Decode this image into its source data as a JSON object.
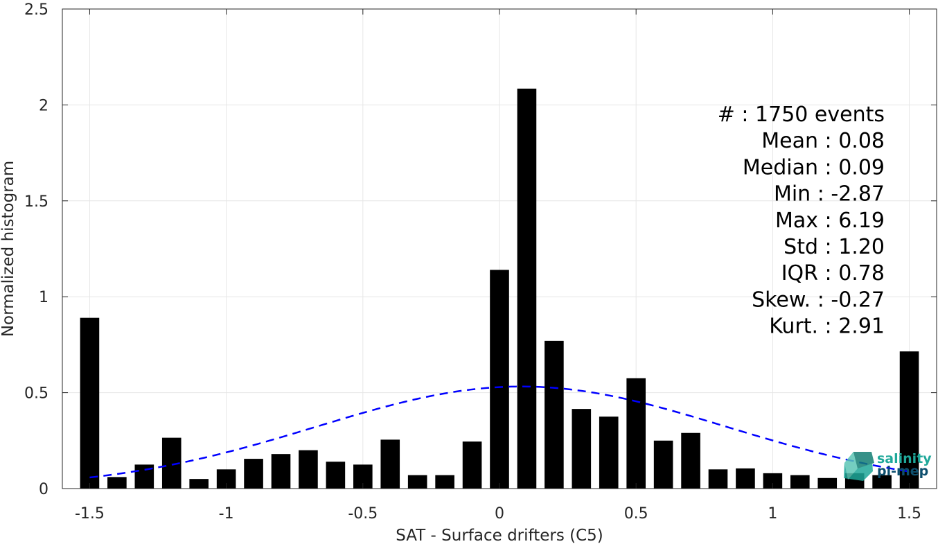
{
  "chart_data": {
    "type": "bar",
    "xlabel": "SAT - Surface drifters (C5)",
    "ylabel": "Normalized histogram",
    "xlim": [
      -1.6,
      1.6
    ],
    "ylim": [
      0,
      2.5
    ],
    "grid": true,
    "xticks": [
      -1.5,
      -1,
      -0.5,
      0,
      0.5,
      1,
      1.5
    ],
    "xtick_labels": [
      "-1.5",
      "-1",
      "-0.5",
      "0",
      "0.5",
      "1",
      "1.5"
    ],
    "yticks": [
      0,
      0.5,
      1,
      1.5,
      2,
      2.5
    ],
    "ytick_labels": [
      "0",
      "0.5",
      "1",
      "1.5",
      "2",
      "2.5"
    ],
    "bar_width": 0.07,
    "bars": [
      {
        "x": -1.5,
        "value": 0.89
      },
      {
        "x": -1.4,
        "value": 0.06
      },
      {
        "x": -1.3,
        "value": 0.125
      },
      {
        "x": -1.2,
        "value": 0.265
      },
      {
        "x": -1.1,
        "value": 0.05
      },
      {
        "x": -1.0,
        "value": 0.1
      },
      {
        "x": -0.9,
        "value": 0.155
      },
      {
        "x": -0.8,
        "value": 0.18
      },
      {
        "x": -0.7,
        "value": 0.2
      },
      {
        "x": -0.6,
        "value": 0.14
      },
      {
        "x": -0.5,
        "value": 0.125
      },
      {
        "x": -0.4,
        "value": 0.255
      },
      {
        "x": -0.3,
        "value": 0.07
      },
      {
        "x": -0.2,
        "value": 0.07
      },
      {
        "x": -0.1,
        "value": 0.245
      },
      {
        "x": 0.0,
        "value": 1.14
      },
      {
        "x": 0.1,
        "value": 2.085
      },
      {
        "x": 0.2,
        "value": 0.77
      },
      {
        "x": 0.3,
        "value": 0.415
      },
      {
        "x": 0.4,
        "value": 0.375
      },
      {
        "x": 0.5,
        "value": 0.575
      },
      {
        "x": 0.6,
        "value": 0.25
      },
      {
        "x": 0.7,
        "value": 0.29
      },
      {
        "x": 0.8,
        "value": 0.1
      },
      {
        "x": 0.9,
        "value": 0.105
      },
      {
        "x": 1.0,
        "value": 0.08
      },
      {
        "x": 1.1,
        "value": 0.07
      },
      {
        "x": 1.2,
        "value": 0.055
      },
      {
        "x": 1.3,
        "value": 0.08
      },
      {
        "x": 1.4,
        "value": 0.07
      },
      {
        "x": 1.5,
        "value": 0.715
      }
    ],
    "fit_curve": {
      "type": "normal",
      "mean": 0.08,
      "std": 0.75,
      "x_range": [
        -1.5,
        1.5
      ],
      "color": "#0000ff",
      "style": "dashed"
    },
    "stats": [
      {
        "label": "#  : 1750 events"
      },
      {
        "label": "Mean : 0.08"
      },
      {
        "label": "Median : 0.09"
      },
      {
        "label": "Min : -2.87"
      },
      {
        "label": "Max : 6.19"
      },
      {
        "label": "Std : 1.20"
      },
      {
        "label": "IQR : 0.78"
      },
      {
        "label": "Skew. : -0.27"
      },
      {
        "label": "Kurt. : 2.91"
      }
    ],
    "colors": {
      "bar": "#000000",
      "grid": "#e6e6e6",
      "axis": "#262626",
      "logo_teal": "#1fa89a",
      "logo_dark": "#0d4f6e"
    }
  },
  "logo": {
    "line1": "salinity",
    "line2": "pi-mep"
  }
}
